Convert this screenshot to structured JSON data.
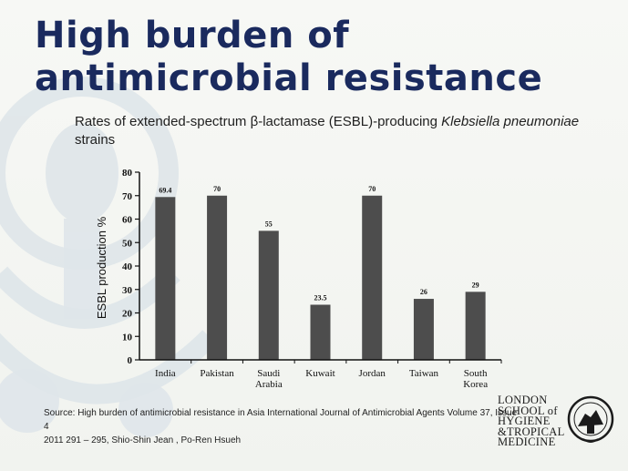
{
  "slide": {
    "title_line1": "High burden of",
    "title_line2": "antimicrobial resistance",
    "subtitle_prefix": "Rates of extended-spectrum β-lactamase (ESBL)-producing ",
    "subtitle_italic": "Klebsiella pneumoniae",
    "subtitle_suffix": " strains",
    "source_line1": "Source: High burden of antimicrobial resistance in Asia International Journal of Antimicrobial Agents Volume 37, Issue 4",
    "source_line2": "2011 291 – 295, Shio-Shin Jean , Po-Ren Hsueh",
    "logo_lines": [
      "LONDON",
      "SCHOOL of",
      "HYGIENE",
      "&TROPICAL",
      "MEDICINE"
    ]
  },
  "colors": {
    "title": "#1a2a5e",
    "bar": "#4d4d4d",
    "watermark": "#dfe6ea"
  },
  "chart_data": {
    "type": "bar",
    "categories": [
      "India",
      "Pakistan",
      "Saudi Arabia",
      "Kuwait",
      "Jordan",
      "Taiwan",
      "South Korea"
    ],
    "category_lines": [
      [
        "India"
      ],
      [
        "Pakistan"
      ],
      [
        "Saudi",
        "Arabia"
      ],
      [
        "Kuwait"
      ],
      [
        "Jordan"
      ],
      [
        "Taiwan"
      ],
      [
        "South",
        "Korea"
      ]
    ],
    "values": [
      69.4,
      70,
      55,
      23.5,
      70,
      26,
      29
    ],
    "value_labels": [
      "69.4",
      "70",
      "55",
      "23.5",
      "70",
      "26",
      "29"
    ],
    "ylabel": "ESBL production %",
    "xlabel": "",
    "ylim": [
      0,
      80
    ],
    "yticks": [
      0,
      10,
      20,
      30,
      40,
      50,
      60,
      70,
      80
    ],
    "grid": false,
    "legend": "none"
  }
}
